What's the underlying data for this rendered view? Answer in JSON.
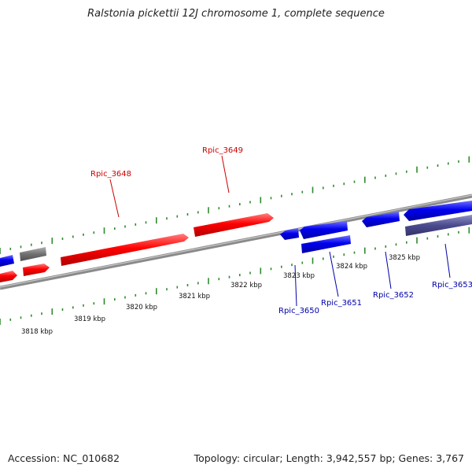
{
  "title": "Ralstonia pickettii 12J chromosome 1, complete sequence",
  "footer": {
    "accession": "Accession: NC_010682",
    "summary": "Topology: circular; Length: 3,942,557 bp; Genes: 3,767"
  },
  "colors": {
    "forward_gene": "#ff0000",
    "reverse_gene": "#0000ee",
    "other_gene_grey": "#707070",
    "other_gene_purple": "#4a4a8e",
    "backbone": "#8a8a8a",
    "ruler_tick": "#2e8b2e",
    "forward_label": "#cc0000",
    "reverse_label": "#0000aa"
  },
  "scale_labels": [
    "3818 kbp",
    "3819 kbp",
    "3820 kbp",
    "3821 kbp",
    "3822 kbp",
    "3823 kbp",
    "3824 kbp",
    "3825 kbp"
  ],
  "gene_labels": {
    "forward": [
      "Rpic_3648",
      "Rpic_3649"
    ],
    "reverse": [
      "Rpic_3650",
      "Rpic_3651",
      "Rpic_3652",
      "Rpic_3653"
    ]
  }
}
